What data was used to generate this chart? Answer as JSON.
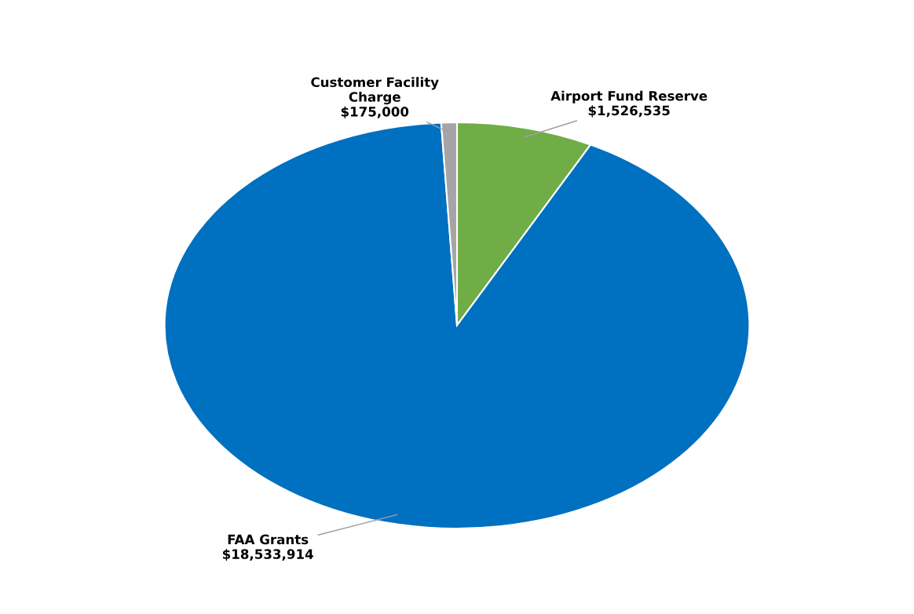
{
  "chart_data": {
    "type": "pie",
    "categories": [
      "Airport Fund Reserve",
      "FAA Grants",
      "Customer Facility\nCharge"
    ],
    "values": [
      1526535,
      18533914,
      175000
    ],
    "value_labels": [
      "$1,526,535",
      "$18,533,914",
      "$175,000"
    ],
    "colors": [
      "#70ad47",
      "#0070c0",
      "#a5a5a5"
    ]
  }
}
